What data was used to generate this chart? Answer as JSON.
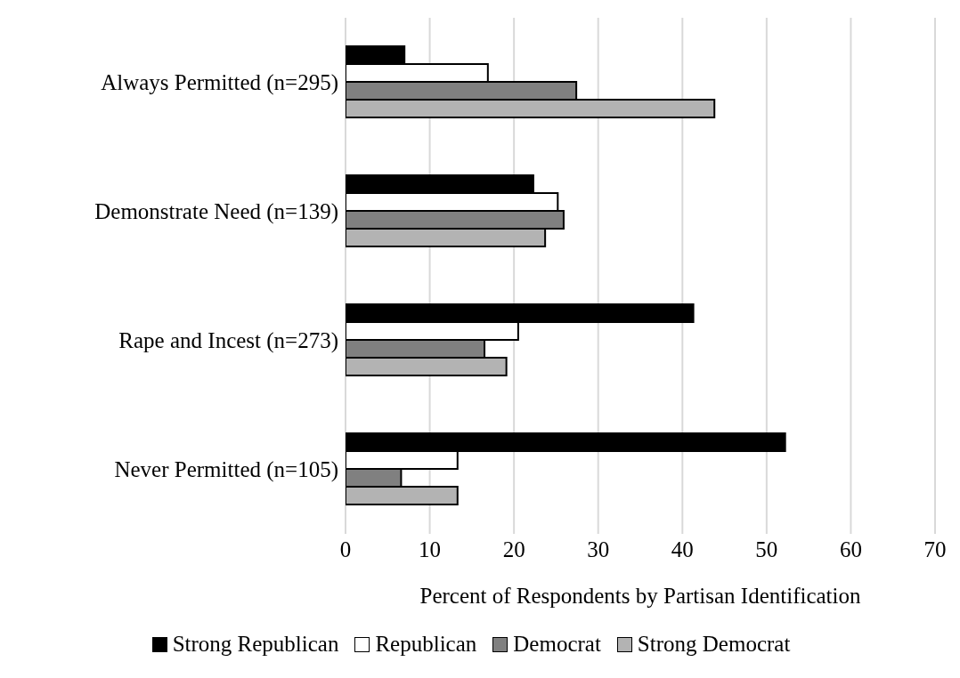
{
  "chart_data": {
    "type": "bar",
    "orientation": "horizontal",
    "xlabel": "Percent of Respondents by Partisan Identification",
    "categories": [
      "Always Permitted (n=295)",
      "Demonstrate Need (n=139)",
      "Rape and Incest (n=273)",
      "Never Permitted (n=105)"
    ],
    "series": [
      {
        "name": "Strong Republican",
        "color": "#000000",
        "values": [
          7.0,
          22.3,
          41.3,
          52.2
        ]
      },
      {
        "name": "Republican",
        "color": "#ffffff",
        "values": [
          16.9,
          25.2,
          20.5,
          13.3
        ]
      },
      {
        "name": "Democrat",
        "color": "#808080",
        "values": [
          27.4,
          25.9,
          16.5,
          6.6
        ]
      },
      {
        "name": "Strong Democrat",
        "color": "#b3b3b3",
        "values": [
          43.8,
          23.7,
          19.1,
          13.3
        ]
      }
    ],
    "xlim": [
      0,
      70
    ],
    "xticks": [
      0,
      10,
      20,
      30,
      40,
      50,
      60,
      70
    ],
    "grid": "x",
    "legend": "bottom"
  }
}
